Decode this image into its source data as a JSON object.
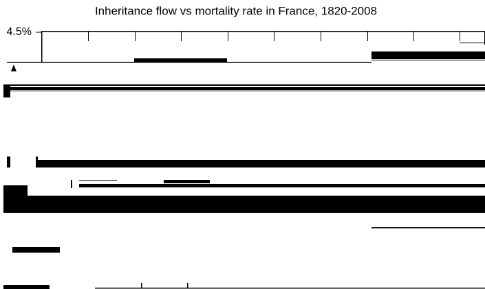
{
  "chart_data": {
    "type": "line",
    "title": "Inheritance flow vs mortality rate in France, 1820-2008",
    "yticks": [
      {
        "value": 4.5,
        "label": "4.5%"
      }
    ]
  }
}
